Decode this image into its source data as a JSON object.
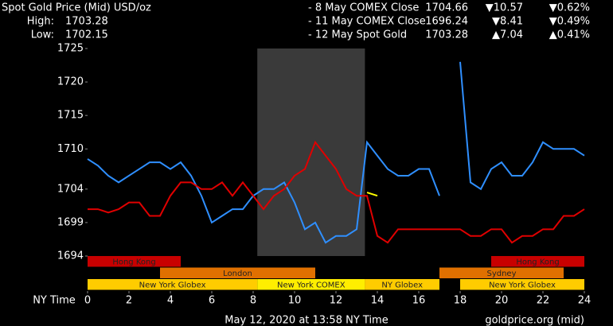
{
  "chart_data": {
    "type": "line",
    "title": "Spot Gold Price (Mid) USD/oz",
    "high_label": "High:",
    "high": 1703.28,
    "low_label": "Low:",
    "low": 1702.15,
    "x_label": "NY Time",
    "footer": "May 12, 2020 at 13:58 NY Time",
    "source": "goldprice.org (mid)",
    "x": [
      0,
      0.5,
      1,
      1.5,
      2,
      2.5,
      3,
      3.5,
      4,
      4.5,
      5,
      5.5,
      6,
      6.5,
      7,
      7.5,
      8,
      8.5,
      9,
      9.5,
      10,
      10.5,
      11,
      11.5,
      12,
      12.5,
      13,
      13.5,
      14,
      14.5,
      15,
      15.5,
      16,
      16.5,
      17,
      17.5,
      18,
      18.5,
      19,
      19.5,
      20,
      20.5,
      21,
      21.5,
      22,
      22.5,
      23,
      23.5,
      24
    ],
    "series": [
      {
        "name": "- 8 May COMEX Close",
        "color": "#2f8fff",
        "close": 1704.66,
        "change": -10.57,
        "change_label": "▼10.57",
        "pct": -0.62,
        "pct_label": "▼0.62%",
        "values": [
          1708.5,
          1707.5,
          1706,
          1705,
          1706,
          1707,
          1708,
          1708,
          1707,
          1708,
          1706,
          1703,
          1699,
          1700,
          1701,
          1701,
          1703,
          1704,
          1704,
          1705,
          1702,
          1698,
          1699,
          1696,
          1697,
          1697,
          1698,
          1711,
          1709,
          1707,
          1706,
          1706,
          1707,
          1707,
          1703,
          null,
          1723,
          1705,
          1704,
          1707,
          1708,
          1706,
          1706,
          1708,
          1711,
          1710,
          1710,
          1710,
          1709
        ]
      },
      {
        "name": "- 11 May COMEX Close",
        "color": "#e00000",
        "close": 1696.24,
        "change": -8.41,
        "change_label": "▼8.41",
        "pct": -0.49,
        "pct_label": "▼0.49%",
        "values": [
          1701,
          1701,
          1700.5,
          1701,
          1702,
          1702,
          1700,
          1700,
          1703,
          1705,
          1705,
          1704,
          1704,
          1705,
          1703,
          1705,
          1703,
          1701,
          1703,
          1704,
          1706,
          1707,
          1711,
          1709,
          1707,
          1704,
          1703,
          1703,
          1697,
          1696,
          1698,
          1698,
          1698,
          1698,
          1698,
          1698,
          1698,
          1697,
          1697,
          1698,
          1698,
          1696,
          1697,
          1697,
          1698,
          1698,
          1700,
          1700,
          1701
        ]
      },
      {
        "name": "- 12 May Spot Gold",
        "color": "#ffff00",
        "close": 1703.28,
        "change": 7.04,
        "change_label": "▲7.04",
        "pct": 0.41,
        "pct_label": "▲0.41%",
        "values": [
          null,
          null,
          null,
          null,
          null,
          null,
          null,
          null,
          null,
          null,
          null,
          null,
          null,
          null,
          null,
          null,
          null,
          null,
          null,
          null,
          null,
          null,
          null,
          null,
          null,
          null,
          null,
          1703.5,
          1703,
          null,
          null,
          null,
          null,
          null,
          null,
          null,
          null,
          null,
          null,
          null,
          null,
          null,
          null,
          null,
          null,
          null,
          null,
          null,
          null
        ]
      }
    ],
    "xlim": [
      0,
      24
    ],
    "xticks": [
      0,
      2,
      4,
      6,
      8,
      10,
      12,
      14,
      16,
      18,
      20,
      22,
      24
    ],
    "ylim": [
      1694,
      1725
    ],
    "yticks": [
      1725,
      1720,
      1715,
      1710,
      1704,
      1699,
      1694
    ],
    "shade": [
      8.2,
      13.4
    ],
    "sessions": [
      {
        "label": "Hong Kong",
        "start": 0,
        "end": 4.5,
        "row": 0,
        "color": "#c80000"
      },
      {
        "label": "Hong Kong",
        "start": 19.5,
        "end": 24,
        "row": 0,
        "color": "#c80000"
      },
      {
        "label": "London",
        "start": 3.5,
        "end": 11,
        "row": 1,
        "color": "#e07000"
      },
      {
        "label": "Sydney",
        "start": 17,
        "end": 23,
        "row": 1,
        "color": "#e07000"
      },
      {
        "label": "New York Globex",
        "start": 0,
        "end": 8.2,
        "row": 2,
        "color": "#ffcc00"
      },
      {
        "label": "New York COMEX",
        "start": 8.2,
        "end": 13.4,
        "row": 2,
        "color": "#ffee00"
      },
      {
        "label": "NY Globex",
        "start": 13.4,
        "end": 17,
        "row": 2,
        "color": "#ffcc00"
      },
      {
        "label": "New York Globex",
        "start": 18,
        "end": 24,
        "row": 2,
        "color": "#ffcc00"
      }
    ]
  }
}
